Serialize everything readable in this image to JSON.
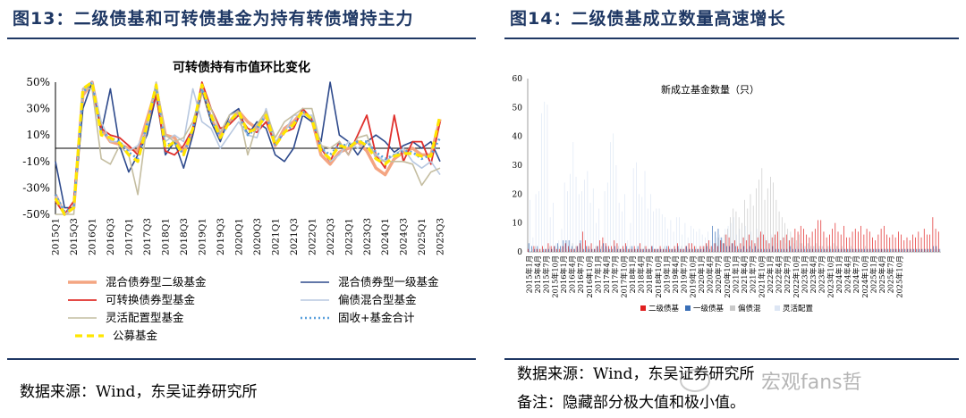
{
  "left": {
    "fig_title": "图13：二级债基和可转债基金为持有转债增持主力",
    "source": "数据来源：Wind，东吴证券研究所"
  },
  "right": {
    "fig_title": "图14：二级债基成立数量高速增长",
    "source": "数据来源：Wind，东吴证券研究所",
    "note": "备注：隐藏部分极大值和极小值。"
  },
  "watermark": {
    "text": "宏观fans哲",
    "colors": {
      "text": "#8a8a8a"
    },
    "icon": "wechat-icon"
  },
  "chart_data": [
    {
      "type": "line",
      "title": "可转债持有市值环比变化",
      "ylim": [
        -50,
        50
      ],
      "yticks": [
        "50%",
        "30%",
        "10%",
        "-10%",
        "-30%",
        "-50%"
      ],
      "x": [
        "2015Q1",
        "2015Q2",
        "2015Q3",
        "2015Q4",
        "2016Q1",
        "2016Q2",
        "2016Q3",
        "2016Q4",
        "2017Q1",
        "2017Q2",
        "2017Q3",
        "2017Q4",
        "2018Q1",
        "2018Q2",
        "2018Q3",
        "2018Q4",
        "2019Q1",
        "2019Q2",
        "2019Q3",
        "2019Q4",
        "2020Q1",
        "2020Q2",
        "2020Q3",
        "2020Q4",
        "2021Q1",
        "2021Q2",
        "2021Q3",
        "2021Q4",
        "2022Q1",
        "2022Q2",
        "2022Q3",
        "2022Q4",
        "2023Q1",
        "2023Q2",
        "2023Q3",
        "2023Q4",
        "2024Q1",
        "2024Q2",
        "2024Q3",
        "2024Q4",
        "2025Q1",
        "2025Q2",
        "2025Q3"
      ],
      "xtick_labels": [
        "2015Q1",
        "2015Q3",
        "2016Q1",
        "2016Q3",
        "2017Q1",
        "2017Q3",
        "2018Q1",
        "2018Q3",
        "2019Q1",
        "2019Q3",
        "2020Q1",
        "2020Q3",
        "2021Q1",
        "2021Q3",
        "2022Q1",
        "2022Q3",
        "2023Q1",
        "2023Q3",
        "2024Q1",
        "2024Q3",
        "2025Q1",
        "2025Q3"
      ],
      "legend_position": "bottom",
      "series": [
        {
          "name": "混合债券型二级基金",
          "color": "#f4a582",
          "width": 3.5,
          "dash": "",
          "values": [
            -35,
            -50,
            -45,
            40,
            50,
            15,
            5,
            3,
            0,
            -2,
            22,
            45,
            10,
            8,
            -3,
            12,
            45,
            22,
            10,
            20,
            28,
            20,
            15,
            25,
            2,
            15,
            20,
            28,
            22,
            -5,
            -12,
            -3,
            0,
            5,
            -2,
            -15,
            -20,
            -8,
            -3,
            0,
            -5,
            -5,
            22
          ]
        },
        {
          "name": "混合债券型一级基金",
          "color": "#2e4a8c",
          "width": 1.6,
          "dash": "",
          "values": [
            -10,
            -45,
            -45,
            30,
            50,
            12,
            45,
            2,
            -18,
            -5,
            10,
            40,
            -5,
            5,
            -15,
            10,
            45,
            20,
            5,
            25,
            30,
            10,
            20,
            15,
            -5,
            -10,
            0,
            25,
            20,
            5,
            50,
            10,
            5,
            -5,
            5,
            10,
            5,
            -3,
            2,
            5,
            0,
            5,
            -10
          ]
        },
        {
          "name": "可转换债券型基金",
          "color": "#e0302c",
          "width": 1.8,
          "dash": "",
          "values": [
            -40,
            -50,
            -40,
            45,
            50,
            15,
            10,
            8,
            2,
            -5,
            18,
            40,
            -2,
            -5,
            2,
            15,
            50,
            30,
            15,
            18,
            25,
            15,
            12,
            20,
            3,
            12,
            15,
            30,
            22,
            0,
            -10,
            5,
            -5,
            10,
            25,
            -5,
            -15,
            25,
            -10,
            5,
            5,
            -12,
            20
          ]
        },
        {
          "name": "偏债混合型基金",
          "color": "#b8c8e0",
          "width": 1.6,
          "dash": "",
          "values": [
            -35,
            -50,
            -45,
            45,
            50,
            20,
            5,
            5,
            -2,
            2,
            15,
            50,
            5,
            10,
            5,
            45,
            20,
            15,
            0,
            10,
            20,
            10,
            8,
            30,
            5,
            12,
            25,
            25,
            25,
            3,
            -10,
            -5,
            5,
            0,
            5,
            -5,
            -10,
            -5,
            0,
            -10,
            -15,
            -10,
            -20
          ]
        },
        {
          "name": "灵活配置型基金",
          "color": "#c4bda0",
          "width": 1.6,
          "dash": "",
          "values": [
            -50,
            -50,
            -50,
            45,
            45,
            -8,
            -12,
            2,
            -5,
            -35,
            18,
            50,
            10,
            5,
            8,
            20,
            45,
            30,
            12,
            25,
            28,
            -5,
            18,
            28,
            8,
            20,
            25,
            30,
            30,
            2,
            0,
            5,
            -5,
            8,
            10,
            -8,
            -10,
            -10,
            -10,
            -12,
            -28,
            -18,
            -15
          ]
        },
        {
          "name": "固收+基金合计",
          "color": "#5aa0dc",
          "width": 2.6,
          "dash": "2,3",
          "values": [
            -35,
            -48,
            -45,
            42,
            50,
            12,
            8,
            5,
            -3,
            -8,
            18,
            45,
            2,
            5,
            -5,
            15,
            45,
            22,
            8,
            20,
            26,
            10,
            15,
            25,
            3,
            12,
            18,
            28,
            22,
            0,
            -5,
            3,
            2,
            5,
            5,
            -3,
            -8,
            -5,
            -2,
            -3,
            -8,
            -5,
            8
          ]
        },
        {
          "name": "公募基金",
          "color": "#ffe600",
          "width": 3.2,
          "dash": "8,5",
          "values": [
            -38,
            -50,
            -45,
            45,
            50,
            10,
            8,
            4,
            -5,
            -10,
            18,
            48,
            0,
            5,
            -5,
            15,
            48,
            25,
            8,
            20,
            28,
            12,
            15,
            25,
            2,
            12,
            18,
            28,
            22,
            -2,
            -8,
            2,
            0,
            6,
            2,
            -8,
            -12,
            -6,
            -4,
            -4,
            -6,
            -6,
            25
          ]
        }
      ]
    },
    {
      "type": "bar",
      "title": "新成立基金数量（只）",
      "ylim": [
        0,
        60
      ],
      "yticks": [
        0,
        10,
        20,
        30,
        40,
        50,
        60
      ],
      "x_start": "2015年1月",
      "xtick_labels": [
        "2015年1月",
        "2015年4月",
        "2015年7月",
        "2015年10月",
        "2016年1月",
        "2016年4月",
        "2016年7月",
        "2016年10月",
        "2017年1月",
        "2017年4月",
        "2017年7月",
        "2017年10月",
        "2018年1月",
        "2018年4月",
        "2018年7月",
        "2018年10月",
        "2019年1月",
        "2019年4月",
        "2019年7月",
        "2019年10月",
        "2020年1月",
        "2020年4月",
        "2020年7月",
        "2020年10月",
        "2021年1月",
        "2021年4月",
        "2021年7月",
        "2021年10月",
        "2022年1月",
        "2022年4月",
        "2022年7月",
        "2022年10月",
        "2023年1月",
        "2023年4月",
        "2023年7月",
        "2023年10月",
        "2024年1月",
        "2024年4月",
        "2024年7月",
        "2024年10月",
        "2025年1月",
        "2025年4月",
        "2025年7月",
        "2025年10月"
      ],
      "legend_position": "bottom",
      "series": [
        {
          "name": "二级债基",
          "color": "#e02020",
          "values": [
            1,
            0,
            2,
            1,
            1,
            2,
            1,
            3,
            2,
            2,
            1,
            1,
            2,
            3,
            2,
            1,
            1,
            2,
            3,
            7,
            4,
            2,
            3,
            1,
            2,
            4,
            5,
            3,
            2,
            2,
            4,
            3,
            1,
            2,
            3,
            1,
            1,
            2,
            1,
            3,
            1,
            2,
            1,
            2,
            1,
            1,
            2,
            1,
            1,
            2,
            1,
            2,
            3,
            1,
            1,
            2,
            3,
            3,
            2,
            1,
            2,
            2,
            3,
            4,
            2,
            3,
            2,
            4,
            3,
            6,
            5,
            3,
            4,
            2,
            3,
            5,
            4,
            6,
            4,
            3,
            5,
            7,
            6,
            4,
            3,
            5,
            6,
            7,
            4,
            5,
            6,
            4,
            5,
            8,
            7,
            9,
            8,
            6,
            5,
            7,
            8,
            11,
            11,
            7,
            5,
            6,
            8,
            10,
            7,
            6,
            9,
            5,
            5,
            7,
            8,
            7,
            9,
            6,
            8,
            7,
            5,
            4,
            6,
            8,
            9,
            6,
            5,
            6,
            5,
            7,
            6,
            4,
            5,
            4,
            6,
            5,
            7,
            5,
            8,
            6,
            6,
            12,
            8,
            7
          ]
        },
        {
          "name": "一级债基",
          "color": "#3a6fb7",
          "values": [
            3,
            2,
            1,
            2,
            0,
            1,
            1,
            1,
            1,
            2,
            3,
            2,
            4,
            4,
            4,
            2,
            1,
            2,
            4,
            1,
            2,
            1,
            1,
            1,
            2,
            1,
            3,
            2,
            1,
            1,
            2,
            1,
            1,
            1,
            2,
            1,
            2,
            1,
            2,
            1,
            1,
            1,
            1,
            2,
            1,
            1,
            1,
            1,
            2,
            1,
            1,
            1,
            2,
            1,
            1,
            2,
            1,
            1,
            1,
            1,
            1,
            1,
            2,
            1,
            9,
            7,
            8,
            5,
            3,
            2,
            2,
            3,
            2,
            1,
            1,
            2,
            1,
            2,
            1,
            2,
            1,
            1,
            1,
            1,
            1,
            2,
            1,
            1,
            1,
            1,
            1,
            2,
            1,
            1,
            1,
            1,
            1,
            1,
            1,
            1,
            1,
            1,
            1,
            1,
            1,
            1,
            1,
            1,
            1,
            1,
            1,
            1,
            1,
            1,
            1,
            1,
            1,
            1,
            1,
            1,
            1,
            1,
            1,
            1,
            1,
            1,
            1,
            1,
            1,
            1,
            1,
            1,
            1,
            1,
            1,
            1,
            1,
            1,
            1,
            1,
            1,
            2,
            2,
            1
          ]
        },
        {
          "name": "偏债混",
          "color": "#c9c9c9",
          "values": [
            0,
            1,
            2,
            1,
            1,
            0,
            1,
            2,
            1,
            1,
            2,
            1,
            2,
            1,
            1,
            3,
            2,
            1,
            2,
            1,
            1,
            2,
            1,
            2,
            1,
            2,
            1,
            1,
            1,
            1,
            1,
            2,
            1,
            1,
            1,
            2,
            1,
            1,
            1,
            1,
            2,
            1,
            1,
            1,
            1,
            1,
            1,
            2,
            1,
            1,
            1,
            1,
            1,
            2,
            1,
            1,
            1,
            1,
            2,
            1,
            1,
            2,
            3,
            2,
            1,
            3,
            5,
            4,
            6,
            8,
            12,
            15,
            14,
            12,
            10,
            18,
            15,
            20,
            16,
            22,
            25,
            29,
            18,
            22,
            26,
            24,
            18,
            14,
            12,
            10,
            8,
            7,
            5,
            4,
            6,
            3,
            2,
            3,
            2,
            2,
            3,
            2,
            2,
            1,
            2,
            2,
            3,
            2,
            1,
            2,
            1,
            1,
            2,
            1,
            1,
            1,
            1,
            2,
            1,
            1,
            1,
            1,
            1,
            1,
            1,
            1,
            1,
            1,
            1,
            1,
            1,
            1,
            1,
            1,
            1,
            1,
            1,
            1,
            1,
            1,
            1,
            1,
            1,
            1
          ]
        },
        {
          "name": "灵活配置",
          "color": "#dde6f4",
          "values": [
            18,
            5,
            20,
            21,
            48,
            52,
            51,
            12,
            17,
            3,
            4,
            8,
            24,
            21,
            27,
            38,
            26,
            20,
            21,
            25,
            28,
            17,
            22,
            10,
            15,
            2,
            21,
            24,
            38,
            41,
            30,
            17,
            14,
            20,
            4,
            10,
            29,
            31,
            20,
            19,
            28,
            15,
            20,
            14,
            15,
            15,
            13,
            12,
            8,
            11,
            7,
            12,
            12,
            6,
            10,
            5,
            9,
            8,
            7,
            8,
            6,
            5,
            7,
            4,
            3,
            5,
            6,
            5,
            8,
            9,
            10,
            12,
            6,
            8,
            5,
            9,
            6,
            7,
            4,
            8,
            6,
            7,
            5,
            4,
            6,
            5,
            3,
            4,
            5,
            3,
            4,
            2,
            3,
            2,
            3,
            2,
            2,
            3,
            2,
            2,
            1,
            2,
            2,
            1,
            2,
            1,
            1,
            2,
            1,
            1,
            1,
            1,
            1,
            1,
            1,
            1,
            1,
            1,
            1,
            1,
            1,
            1,
            1,
            1,
            1,
            1,
            1,
            1,
            1,
            1,
            1,
            1,
            1,
            1,
            1,
            1,
            1,
            1,
            1,
            1,
            1,
            1,
            1,
            1
          ]
        }
      ]
    }
  ]
}
